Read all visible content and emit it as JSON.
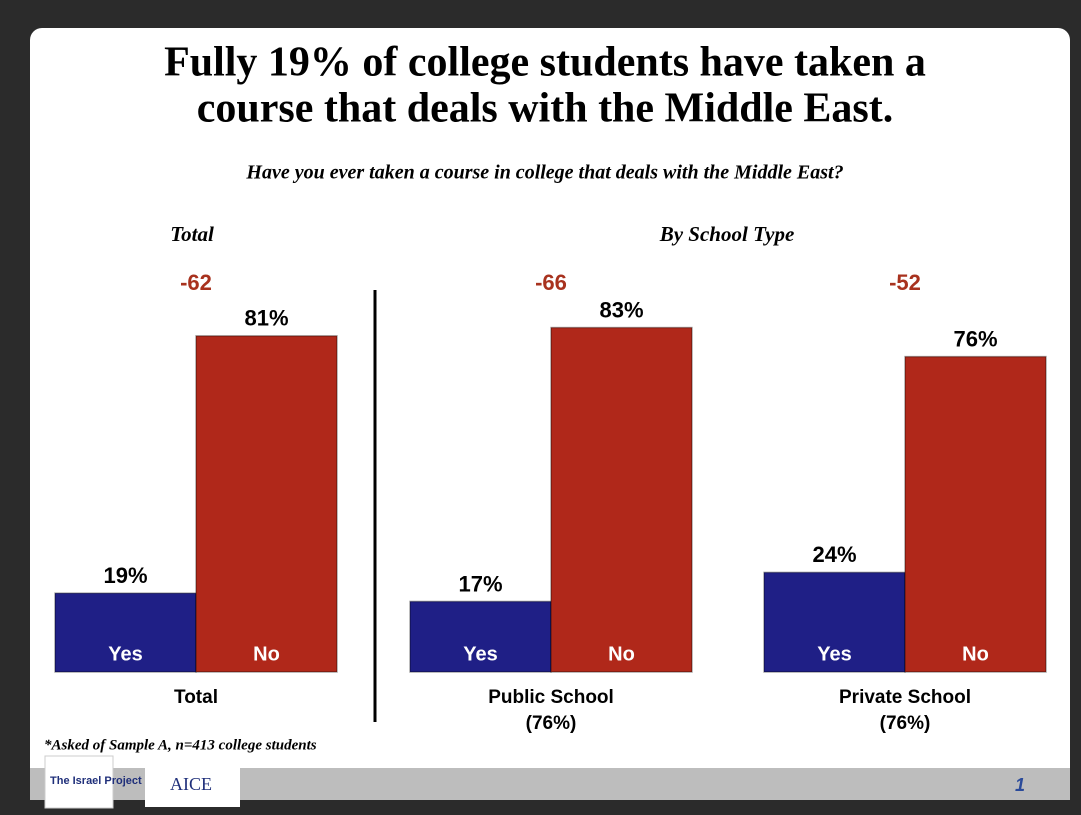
{
  "chart_data": {
    "type": "bar",
    "title": [
      "Fully 19% of college students have taken a",
      "course that deals with the Middle East."
    ],
    "subtitle": "Have you ever taken a course in college that deals with the Middle East?",
    "panel_titles": [
      "Total",
      "By School Type"
    ],
    "categories": [
      "Total",
      "Public School",
      "Private School"
    ],
    "category_notes": [
      null,
      "(76%)",
      "(76%)"
    ],
    "differences": [
      -62,
      -66,
      -52
    ],
    "difference_color": "#a8321e",
    "series": [
      {
        "name": "Yes",
        "color": "#1f1f86",
        "values": [
          19,
          17,
          24
        ],
        "value_labels": [
          "19%",
          "17%",
          "24%"
        ]
      },
      {
        "name": "No",
        "color": "#b0281a",
        "values": [
          81,
          83,
          76
        ],
        "value_labels": [
          "81%",
          "83%",
          "76%"
        ]
      }
    ],
    "footnote": "*Asked of Sample A, n=413 college students",
    "logos": [
      "The Israel Project",
      "AICE"
    ],
    "page_number": "1"
  }
}
